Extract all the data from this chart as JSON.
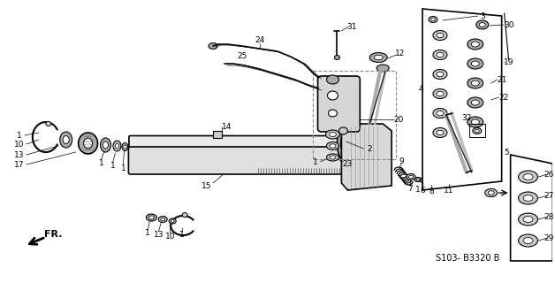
{
  "bg_color": "#ffffff",
  "diagram_color": "#000000",
  "ref_code": "S103- B3320 B",
  "arrow_label": "FR.",
  "fig_width": 6.28,
  "fig_height": 3.2,
  "dpi": 100,
  "gray": "#888888",
  "light_gray": "#cccccc",
  "mid_gray": "#aaaaaa",
  "dark_gray": "#555555"
}
